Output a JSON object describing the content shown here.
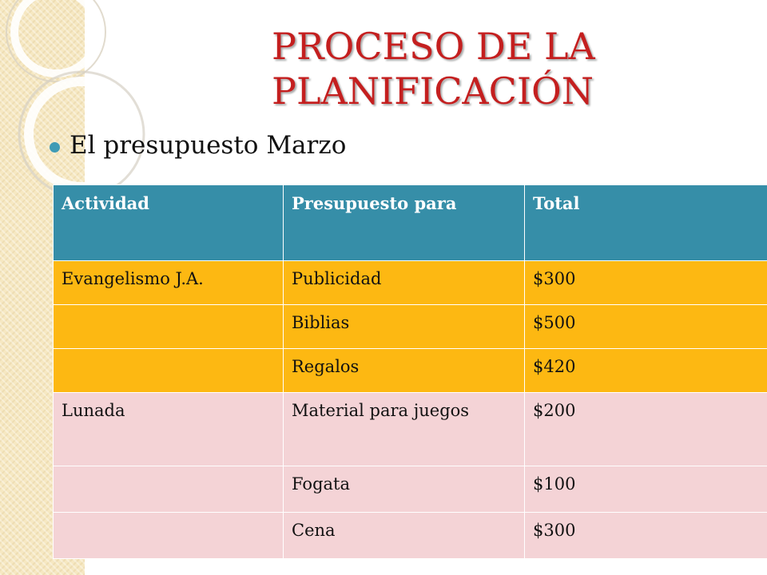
{
  "slide": {
    "title_line1": "PROCESO DE LA",
    "title_line2": "PLANIFICACIÓN",
    "bullet": "El presupuesto Marzo"
  },
  "table": {
    "headers": [
      "Actividad",
      "Presupuesto para",
      "Total"
    ],
    "rows": [
      {
        "actividad": "Evangelismo J.A.",
        "presupuesto": "Publicidad",
        "total": "$300",
        "group": "orange"
      },
      {
        "actividad": "",
        "presupuesto": "Biblias",
        "total": "$500",
        "group": "orange"
      },
      {
        "actividad": "",
        "presupuesto": "Regalos",
        "total": "$420",
        "group": "orange"
      },
      {
        "actividad": "Lunada",
        "presupuesto": "Material para juegos",
        "total": "$200",
        "group": "pink"
      },
      {
        "actividad": "",
        "presupuesto": "Fogata",
        "total": "$100",
        "group": "pink"
      },
      {
        "actividad": "",
        "presupuesto": "Cena",
        "total": "$300",
        "group": "pink"
      }
    ]
  },
  "colors": {
    "title": "#c41f1f",
    "header_bg": "#368ea8",
    "group_orange": "#fdb812",
    "group_pink": "#f4d3d6",
    "bullet": "#3f9bb5"
  }
}
